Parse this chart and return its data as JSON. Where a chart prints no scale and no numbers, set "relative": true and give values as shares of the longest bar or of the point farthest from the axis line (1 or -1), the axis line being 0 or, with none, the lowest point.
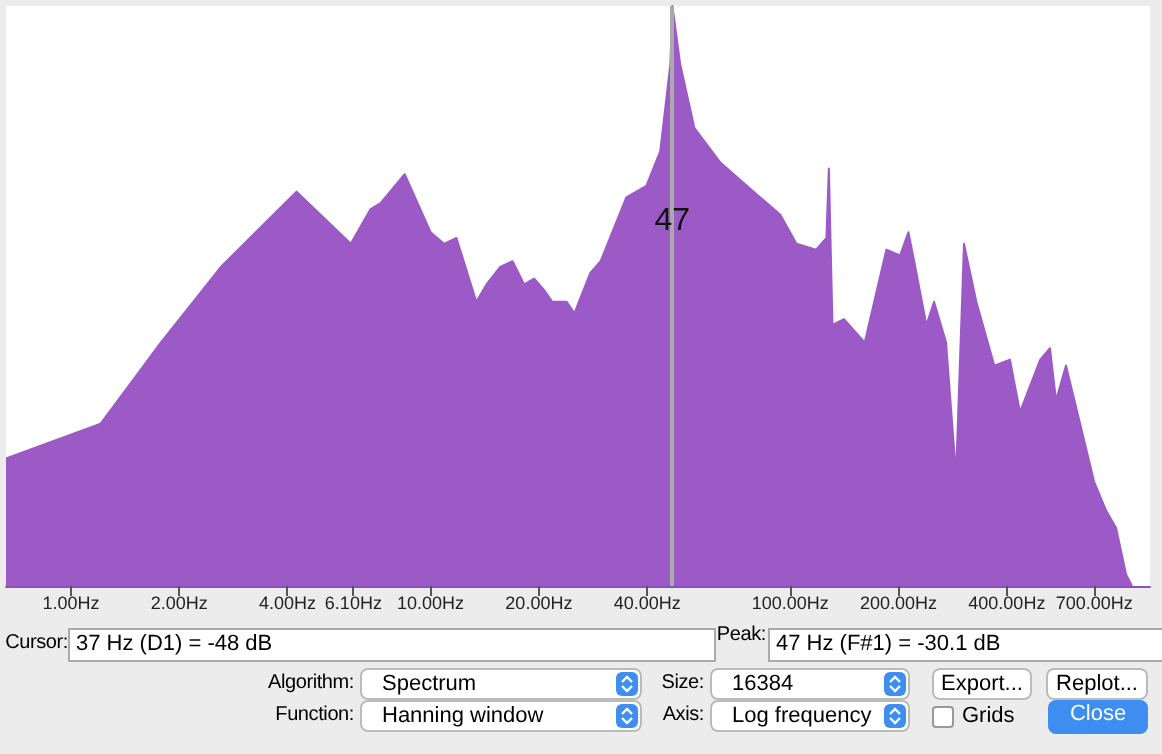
{
  "chart_data": {
    "type": "area",
    "relative": true,
    "log": "x",
    "color": "#9c5ac6",
    "xlim": [
      0.66,
      1000
    ],
    "xticks": [
      {
        "value": 1,
        "label": "1.00Hz"
      },
      {
        "value": 2,
        "label": "2.00Hz"
      },
      {
        "value": 4,
        "label": "4.00Hz"
      },
      {
        "value": 6.1,
        "label": "6.10Hz"
      },
      {
        "value": 10,
        "label": "10.00Hz"
      },
      {
        "value": 20,
        "label": "20.00Hz"
      },
      {
        "value": 40,
        "label": "40.00Hz"
      },
      {
        "value": 100,
        "label": "100.00Hz"
      },
      {
        "value": 200,
        "label": "200.00Hz"
      },
      {
        "value": 400,
        "label": "400.00Hz"
      },
      {
        "value": 700,
        "label": "700.00Hz"
      }
    ],
    "x": [
      0.66,
      1.21,
      1.78,
      2.61,
      4.24,
      6.0,
      6.81,
      7.26,
      8.47,
      10.0,
      10.9,
      11.8,
      13.4,
      14.3,
      15.6,
      16.9,
      18.2,
      19.4,
      20.7,
      21.8,
      23.9,
      25.1,
      27.8,
      29.7,
      35.0,
      39.8,
      43.5,
      46.4,
      47.0,
      49.4,
      54.1,
      63.9,
      82.5,
      93.8,
      104,
      118,
      126,
      128,
      131,
      141,
      161,
      185,
      202,
      213,
      221,
      239,
      251,
      271,
      289,
      304,
      329,
      369,
      408,
      435,
      495,
      527,
      548,
      584,
      639,
      699,
      755,
      805,
      858,
      891
    ],
    "values": [
      0.22,
      0.28,
      0.42,
      0.55,
      0.68,
      0.59,
      0.65,
      0.66,
      0.71,
      0.61,
      0.59,
      0.6,
      0.49,
      0.52,
      0.55,
      0.56,
      0.52,
      0.53,
      0.51,
      0.49,
      0.49,
      0.47,
      0.54,
      0.56,
      0.67,
      0.69,
      0.75,
      0.9,
      1,
      0.9,
      0.79,
      0.73,
      0.67,
      0.64,
      0.59,
      0.58,
      0.6,
      0.72,
      0.45,
      0.46,
      0.42,
      0.58,
      0.57,
      0.61,
      0.56,
      0.45,
      0.49,
      0.42,
      0.19,
      0.59,
      0.49,
      0.38,
      0.39,
      0.3,
      0.39,
      0.41,
      0.32,
      0.38,
      0.28,
      0.18,
      0.13,
      0.1,
      0.02,
      0
    ],
    "ref_lines": [
      {
        "axis": "x",
        "value": 47,
        "label": "47",
        "color": "#aaaaaa"
      }
    ],
    "annotations": [
      "Cursor:",
      "37 Hz (D1) = -48 dB",
      "Peak:",
      "47 Hz (F#1) = -30.1 dB",
      "Algorithm:",
      "Spectrum",
      "Size:",
      "16384",
      "Export...",
      "Replot...",
      "Function:",
      "Hanning window",
      "Axis:",
      "Log frequency",
      "Grids",
      "Close"
    ]
  }
}
